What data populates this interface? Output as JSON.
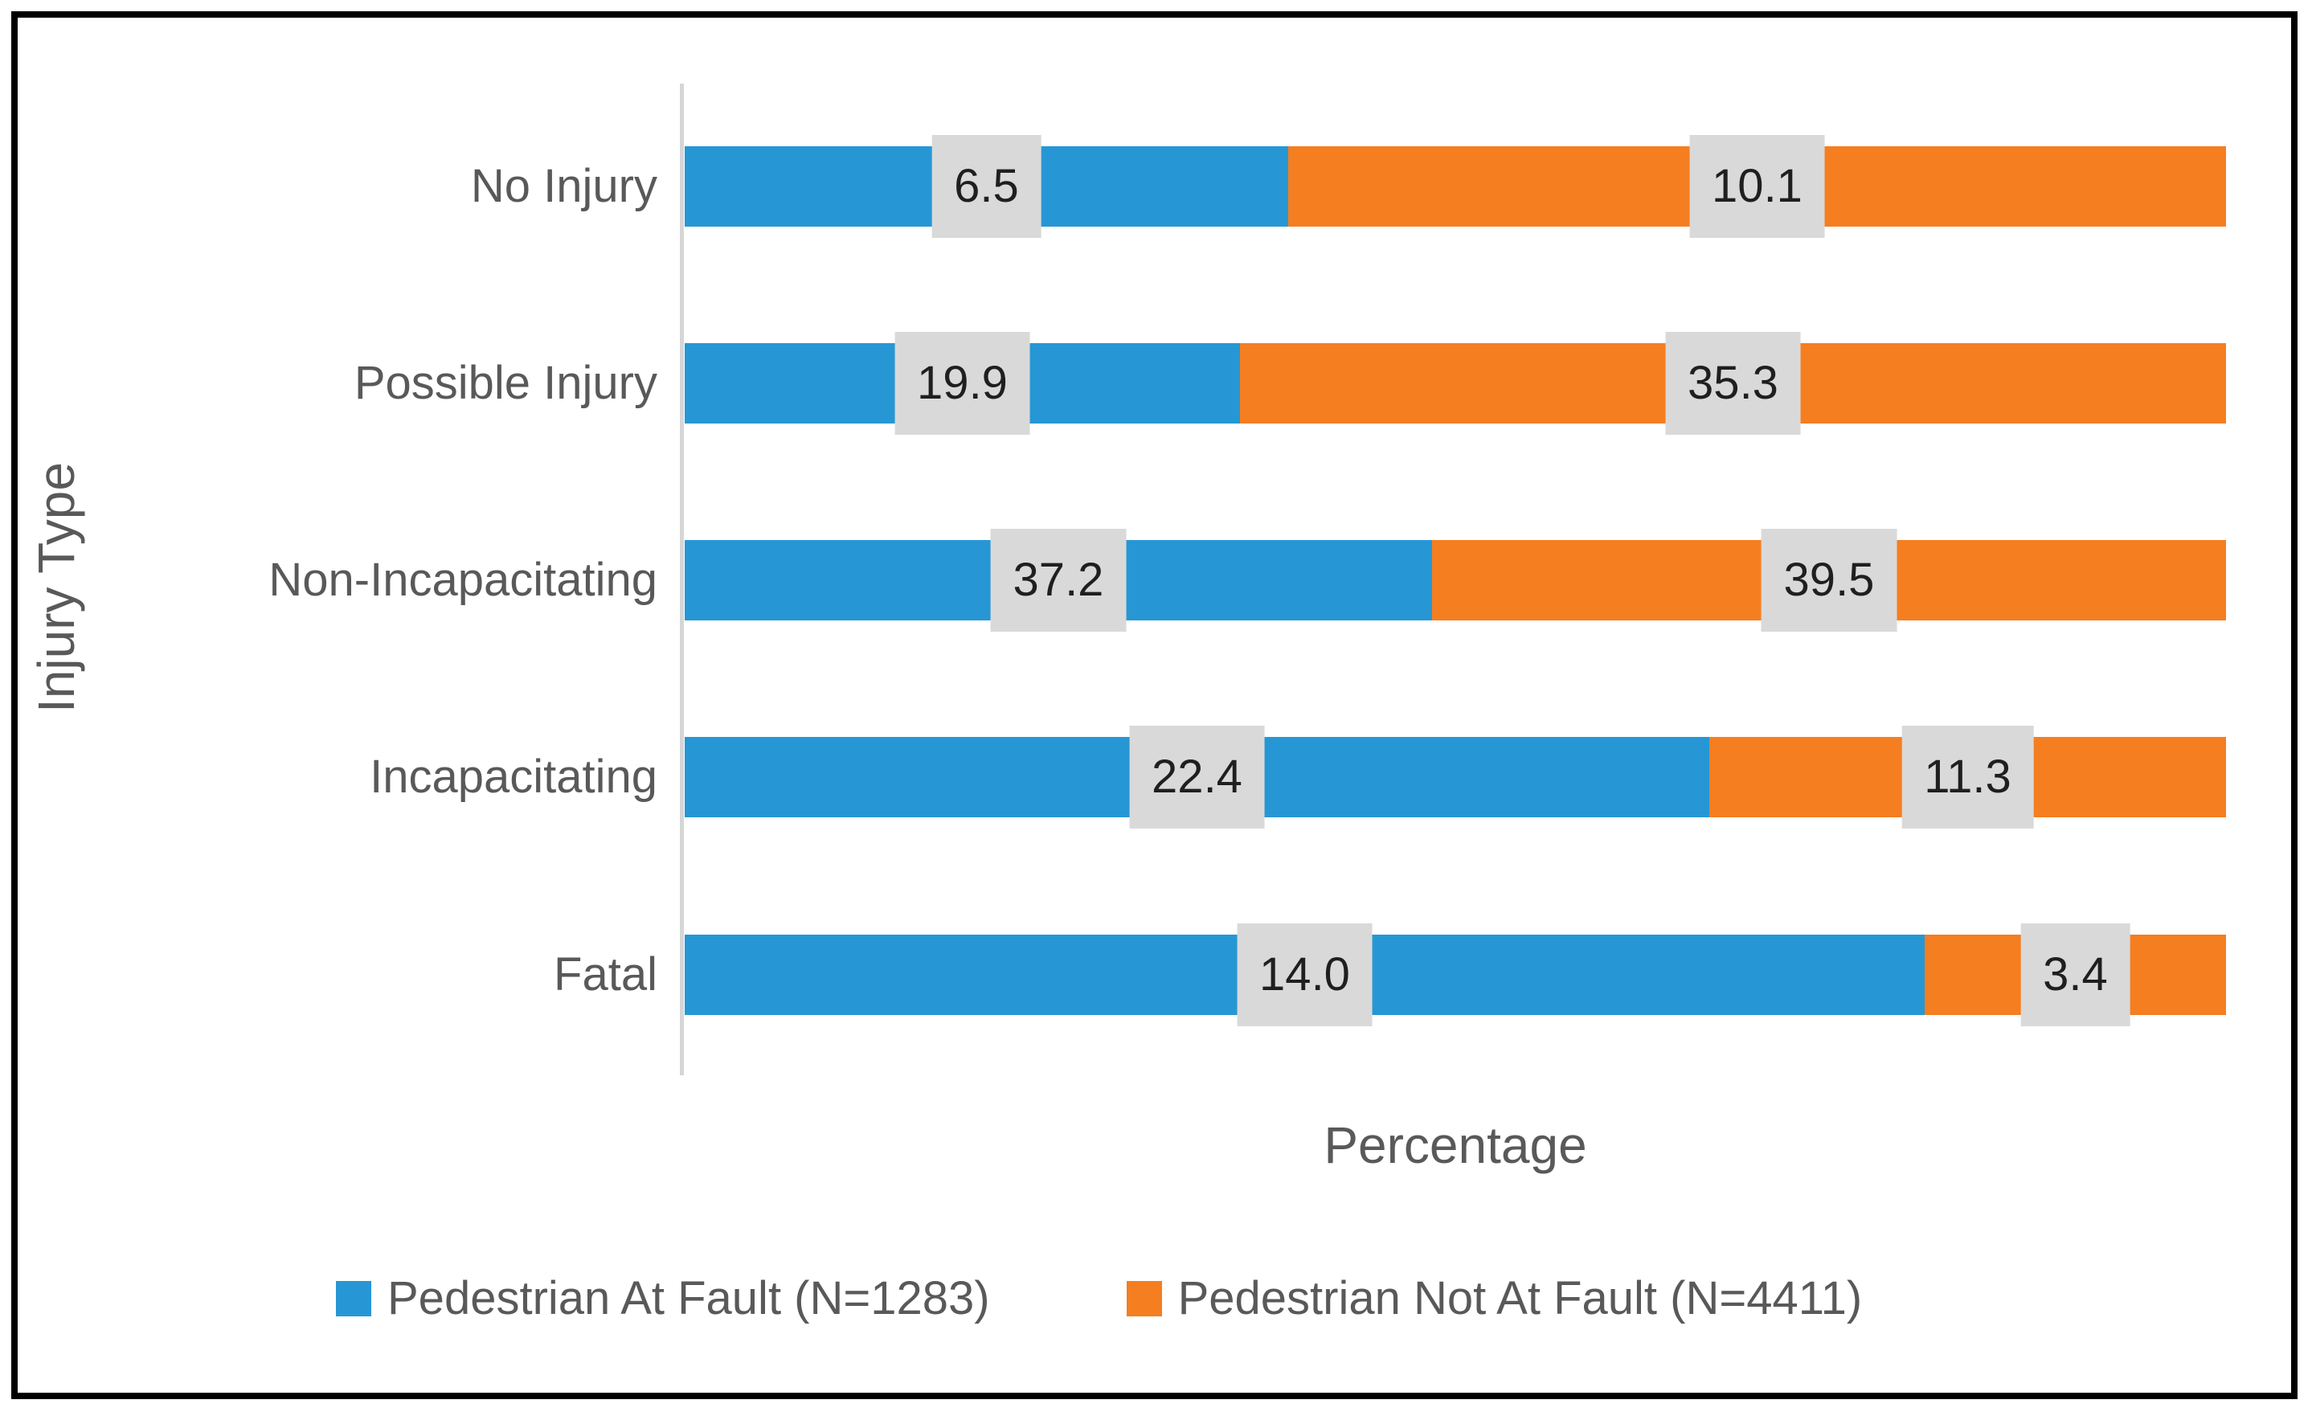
{
  "chart_data": {
    "type": "bar",
    "subtype": "horizontal-100-percent-stacked",
    "title": "",
    "xlabel": "Percentage",
    "ylabel": "Injury Type",
    "grid": false,
    "legend_position": "bottom",
    "categories": [
      "No Injury",
      "Possible Injury",
      "Non-Incapacitating",
      "Incapacitating",
      "Fatal"
    ],
    "series": [
      {
        "name": "Pedestrian At Fault (N=1283)",
        "color": "#2697d4",
        "values": [
          6.5,
          19.9,
          37.2,
          22.4,
          14.0
        ],
        "value_labels": [
          "6.5",
          "19.9",
          "37.2",
          "22.4",
          "14.0"
        ]
      },
      {
        "name": "Pedestrian Not At Fault (N=4411)",
        "color": "#f57e20",
        "values": [
          10.1,
          35.3,
          39.5,
          11.3,
          3.4
        ],
        "value_labels": [
          "10.1",
          "35.3",
          "39.5",
          "11.3",
          "3.4"
        ]
      }
    ],
    "value_label_background": "#d9d9d9",
    "axis_line_color": "#d6d6d6",
    "text_color": "#595959"
  }
}
